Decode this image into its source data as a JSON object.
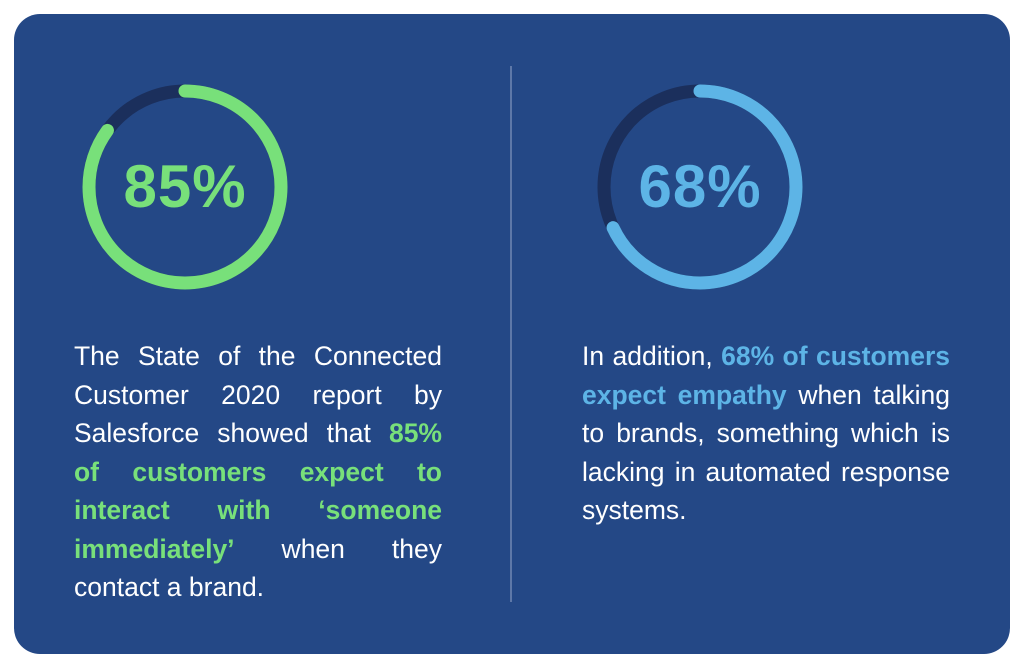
{
  "colors": {
    "card_background": "#244886",
    "ring_track": "#1b2f5c",
    "green_accent": "#78e07a",
    "blue_accent": "#5db4e6",
    "body_text": "#ffffff",
    "divider": "#5e78a8"
  },
  "stats": [
    {
      "value_label": "85%",
      "fraction": 0.85,
      "text_before": "The State of the Connected Customer 2020 report by Salesforce showed that ",
      "highlight": "85% of customers expect to interact with ‘someone immediately’",
      "text_after": " when they contact a brand."
    },
    {
      "value_label": "68%",
      "fraction": 0.68,
      "text_before": "In addition, ",
      "highlight": "68% of customers expect empathy",
      "text_after": " when talking to brands, something which is lacking in automated response systems."
    }
  ]
}
